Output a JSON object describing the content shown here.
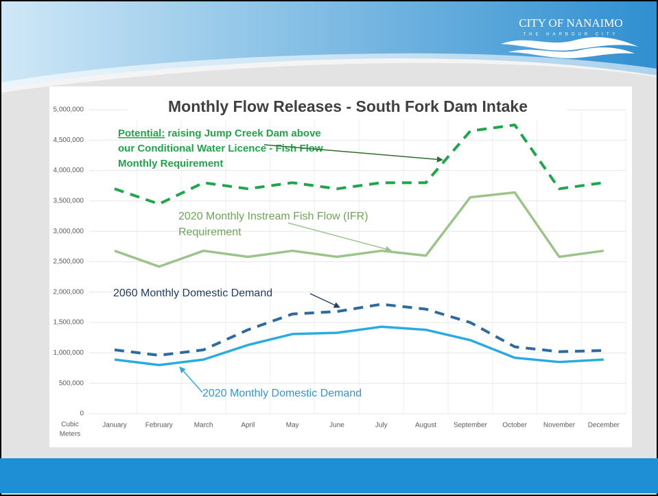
{
  "header": {
    "logo_title": "CITY OF NANAIMO",
    "logo_subtitle": "THE HARBOUR CITY"
  },
  "chart_data": {
    "type": "line",
    "title": "Monthly Flow Releases - South Fork Dam Intake",
    "y_label_lines": [
      "Cubic",
      "Meters"
    ],
    "categories": [
      "January",
      "February",
      "March",
      "April",
      "May",
      "June",
      "July",
      "August",
      "September",
      "October",
      "November",
      "December"
    ],
    "ylim": [
      0,
      5000000
    ],
    "yticks": [
      0,
      {
        "value": 500000,
        "label": "500,000"
      },
      {
        "value": 1000000,
        "label": "1,000,000"
      },
      {
        "value": 1500000,
        "label": "1,500,000"
      },
      {
        "value": 2000000,
        "label": "2,000,000"
      },
      {
        "value": 2500000,
        "label": "2,500,000"
      },
      {
        "value": 3000000,
        "label": "3,000,000"
      },
      {
        "value": 3500000,
        "label": "3,500,000"
      },
      {
        "value": 4000000,
        "label": "4,000,000"
      },
      {
        "value": 4500000,
        "label": "4,500,000"
      },
      {
        "value": 5000000,
        "label": "5,000,000"
      }
    ],
    "grid": true,
    "series": [
      {
        "emphasis": "Potential:",
        "label_lines": [
          "raising Jump Creek Dam above",
          "our Conditional Water Licence - Fish Flow",
          "Monthly Requirement"
        ],
        "color": "#1fa64a",
        "dashed": true,
        "values": [
          3700000,
          3450000,
          3800000,
          3700000,
          3800000,
          3700000,
          3800000,
          3800000,
          4650000,
          4750000,
          3700000,
          3800000
        ]
      },
      {
        "label_lines": [
          "2020 Monthly Instream Fish Flow (IFR)",
          "Requirement"
        ],
        "color": "#9cc48a",
        "dashed": false,
        "values": [
          2680000,
          2420000,
          2680000,
          2580000,
          2680000,
          2580000,
          2680000,
          2600000,
          3560000,
          3640000,
          2580000,
          2680000
        ]
      },
      {
        "name": "2060 Monthly Domestic Demand",
        "color": "#2c6aa0",
        "dashed": true,
        "values": [
          1050000,
          960000,
          1050000,
          1380000,
          1640000,
          1680000,
          1800000,
          1720000,
          1500000,
          1100000,
          1020000,
          1040000
        ]
      },
      {
        "name": "2020 Monthly Domestic Demand",
        "color": "#29abe2",
        "dashed": false,
        "values": [
          890000,
          800000,
          890000,
          1130000,
          1310000,
          1330000,
          1430000,
          1380000,
          1210000,
          920000,
          850000,
          890000
        ]
      }
    ]
  }
}
